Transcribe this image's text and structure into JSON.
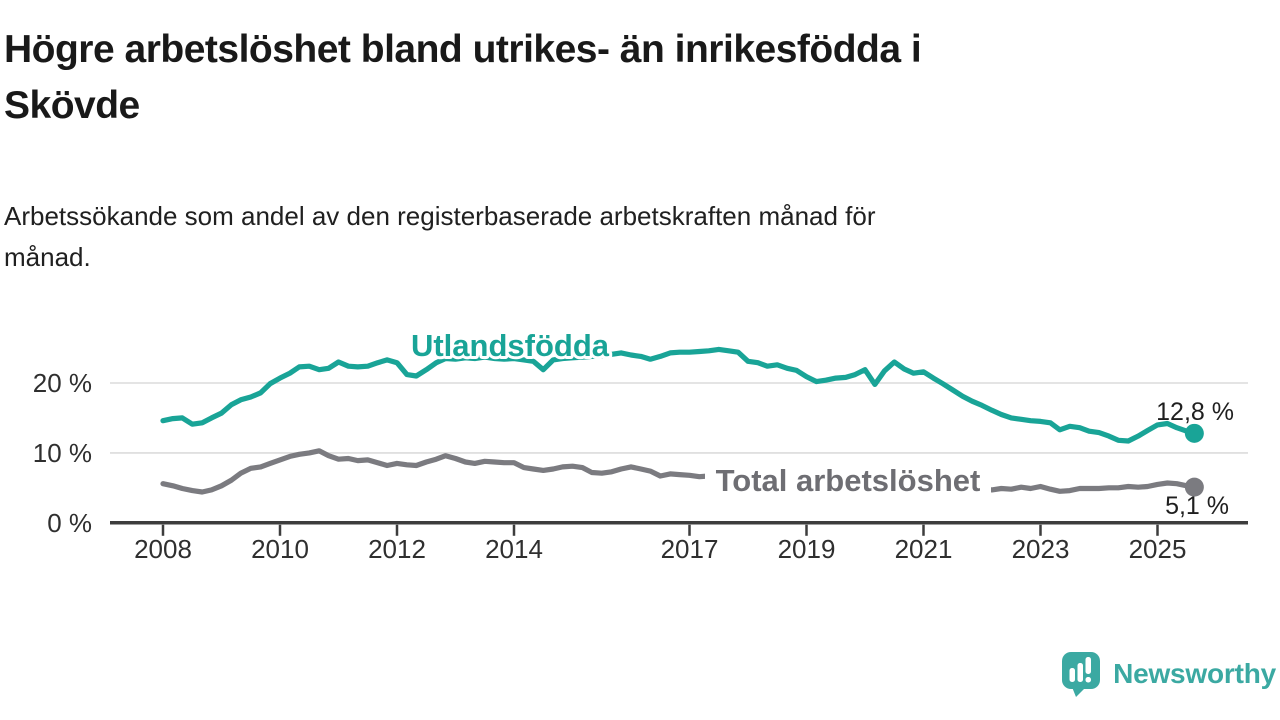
{
  "header": {
    "title_lines": [
      "Högre arbetslöshet bland utrikes- än inrikesfödda i",
      "Skövde"
    ],
    "subtitle_lines": [
      "Arbetssökande som andel av den registerbaserade arbetskraften månad för",
      "månad."
    ]
  },
  "branding": {
    "wordmark": "Newsworthy",
    "color": "#3ba9a2",
    "icon": "newsworthy-speech-bubble-bar-chart-icon"
  },
  "chart_data": {
    "type": "line",
    "title": "Högre arbetslöshet bland utrikes- än inrikesfödda i Skövde",
    "subtitle": "Arbetssökande som andel av den registerbaserade arbetskraften månad för månad.",
    "unit": "percent",
    "grid": "horizontal-only",
    "legend_position": "inline-labels",
    "x_axis": {
      "range_years": [
        2007.9,
        2025.8
      ],
      "ticks": [
        2008,
        2010,
        2012,
        2014,
        2017,
        2019,
        2021,
        2023,
        2025
      ]
    },
    "y_axis": {
      "range": [
        0,
        28
      ],
      "gridlines": [
        10,
        20
      ],
      "ticks": [
        {
          "value": 0,
          "label": "0 %"
        },
        {
          "value": 10,
          "label": "10 %"
        },
        {
          "value": 20,
          "label": "20 %"
        }
      ]
    },
    "x": [
      2008,
      2008.17,
      2008.33,
      2008.5,
      2008.67,
      2008.83,
      2009,
      2009.17,
      2009.33,
      2009.5,
      2009.67,
      2009.83,
      2010,
      2010.17,
      2010.33,
      2010.5,
      2010.67,
      2010.83,
      2011,
      2011.17,
      2011.33,
      2011.5,
      2011.67,
      2011.83,
      2012,
      2012.17,
      2012.33,
      2012.5,
      2012.67,
      2012.83,
      2013,
      2013.17,
      2013.33,
      2013.5,
      2013.67,
      2013.83,
      2014,
      2014.17,
      2014.33,
      2014.5,
      2014.67,
      2014.83,
      2015,
      2015.17,
      2015.33,
      2015.5,
      2015.67,
      2015.83,
      2016,
      2016.17,
      2016.33,
      2016.5,
      2016.67,
      2016.83,
      2017,
      2017.17,
      2017.33,
      2017.5,
      2017.67,
      2017.83,
      2018,
      2018.17,
      2018.33,
      2018.5,
      2018.67,
      2018.83,
      2019,
      2019.17,
      2019.33,
      2019.5,
      2019.67,
      2019.83,
      2020,
      2020.17,
      2020.33,
      2020.5,
      2020.67,
      2020.83,
      2021,
      2021.17,
      2021.33,
      2021.5,
      2021.67,
      2021.83,
      2022,
      2022.17,
      2022.33,
      2022.5,
      2022.67,
      2022.83,
      2023,
      2023.17,
      2023.33,
      2023.5,
      2023.67,
      2023.83,
      2024,
      2024.17,
      2024.33,
      2024.5,
      2024.67,
      2024.83,
      2025,
      2025.17,
      2025.33,
      2025.5,
      2025.63
    ],
    "series": [
      {
        "name": "Utlandsfödda",
        "color": "#19a497",
        "end_label": "12,8 %",
        "end_value": 12.8,
        "values": [
          14.6,
          14.9,
          15.0,
          14.1,
          14.3,
          15.0,
          15.7,
          16.9,
          17.6,
          18.0,
          18.6,
          19.9,
          20.7,
          21.4,
          22.3,
          22.4,
          21.9,
          22.1,
          23.0,
          22.4,
          22.3,
          22.4,
          22.9,
          23.3,
          22.9,
          21.2,
          21.0,
          21.9,
          22.9,
          23.5,
          23.4,
          23.6,
          23.5,
          23.7,
          23.5,
          23.4,
          23.5,
          23.3,
          23.1,
          21.9,
          23.3,
          23.5,
          23.6,
          23.7,
          23.8,
          23.9,
          24.1,
          24.3,
          24.0,
          23.8,
          23.4,
          23.8,
          24.3,
          24.4,
          24.4,
          24.5,
          24.6,
          24.8,
          24.6,
          24.4,
          23.1,
          22.9,
          22.4,
          22.6,
          22.1,
          21.8,
          20.9,
          20.2,
          20.4,
          20.7,
          20.8,
          21.2,
          21.9,
          19.8,
          21.7,
          23.0,
          22.0,
          21.4,
          21.6,
          20.7,
          19.9,
          19.0,
          18.1,
          17.4,
          16.8,
          16.1,
          15.5,
          15.0,
          14.8,
          14.6,
          14.5,
          14.3,
          13.3,
          13.8,
          13.6,
          13.1,
          12.9,
          12.4,
          11.8,
          11.7,
          12.4,
          13.2,
          14.0,
          14.2,
          13.6,
          13.1,
          12.8
        ]
      },
      {
        "name": "Total arbetslöshet",
        "color": "#7b7b80",
        "label_color": "#6e6e73",
        "end_label": "5,1 %",
        "end_value": 5.1,
        "values": [
          5.6,
          5.3,
          4.9,
          4.6,
          4.4,
          4.7,
          5.3,
          6.1,
          7.1,
          7.8,
          8.0,
          8.5,
          9.0,
          9.5,
          9.8,
          10.0,
          10.3,
          9.6,
          9.1,
          9.2,
          8.9,
          9.0,
          8.6,
          8.2,
          8.5,
          8.3,
          8.2,
          8.7,
          9.1,
          9.6,
          9.2,
          8.7,
          8.5,
          8.8,
          8.7,
          8.6,
          8.6,
          7.9,
          7.7,
          7.5,
          7.7,
          8.0,
          8.1,
          7.9,
          7.2,
          7.1,
          7.3,
          7.7,
          8.0,
          7.7,
          7.4,
          6.7,
          7.0,
          6.9,
          6.8,
          6.6,
          6.7,
          6.5,
          6.4,
          6.3,
          6.2,
          6.1,
          6.0,
          5.9,
          5.9,
          6.0,
          6.1,
          6.2,
          6.3,
          6.4,
          6.5,
          6.6,
          6.8,
          7.2,
          7.8,
          8.2,
          8.0,
          7.8,
          7.6,
          7.2,
          6.8,
          6.4,
          6.0,
          5.5,
          4.9,
          4.7,
          4.9,
          4.8,
          5.1,
          4.9,
          5.2,
          4.8,
          4.5,
          4.6,
          4.9,
          4.9,
          4.9,
          5.0,
          5.0,
          5.2,
          5.1,
          5.2,
          5.5,
          5.7,
          5.6,
          5.3,
          5.1
        ]
      }
    ]
  }
}
